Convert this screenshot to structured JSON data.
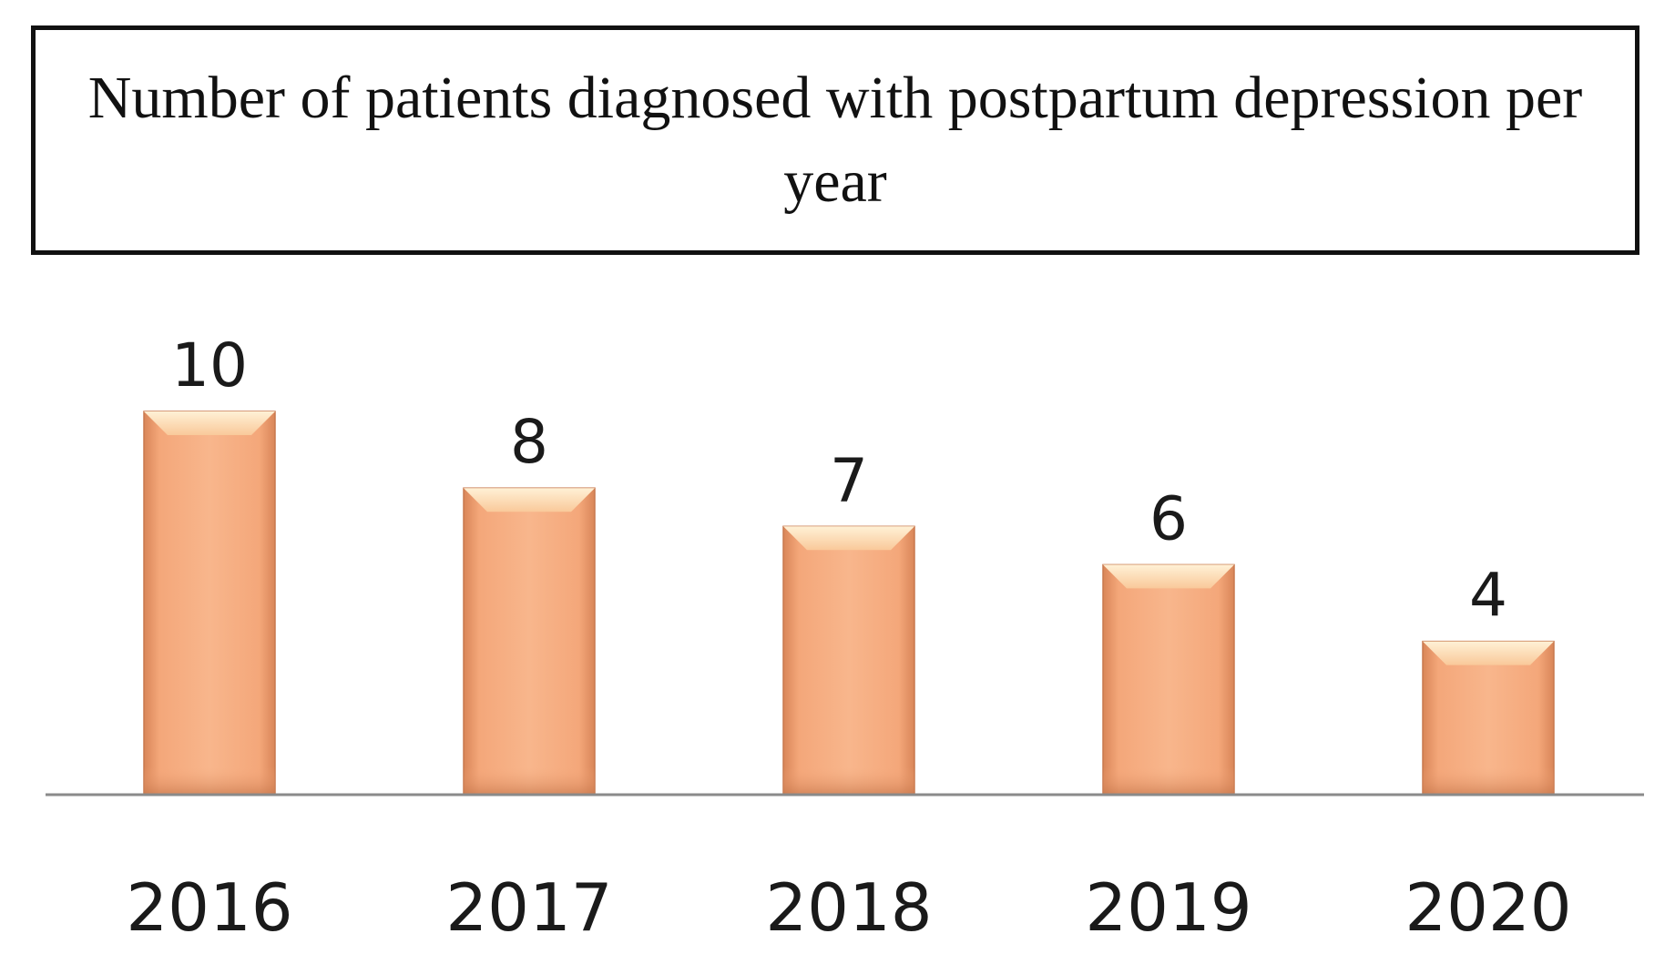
{
  "chart_data": {
    "type": "bar",
    "title": "Number of patients diagnosed with postpartum depression per year",
    "xlabel": "",
    "ylabel": "",
    "categories": [
      "2016",
      "2017",
      "2018",
      "2019",
      "2020"
    ],
    "values": [
      10,
      8,
      7,
      6,
      4
    ],
    "ylim": [
      0,
      10
    ],
    "grid": false,
    "legend": "none",
    "bar_color": "#F4A77A",
    "bar_highlight": "#FDE2B8",
    "bar_edge": "#C8794E",
    "baseline_color": "#8a8a8a"
  }
}
